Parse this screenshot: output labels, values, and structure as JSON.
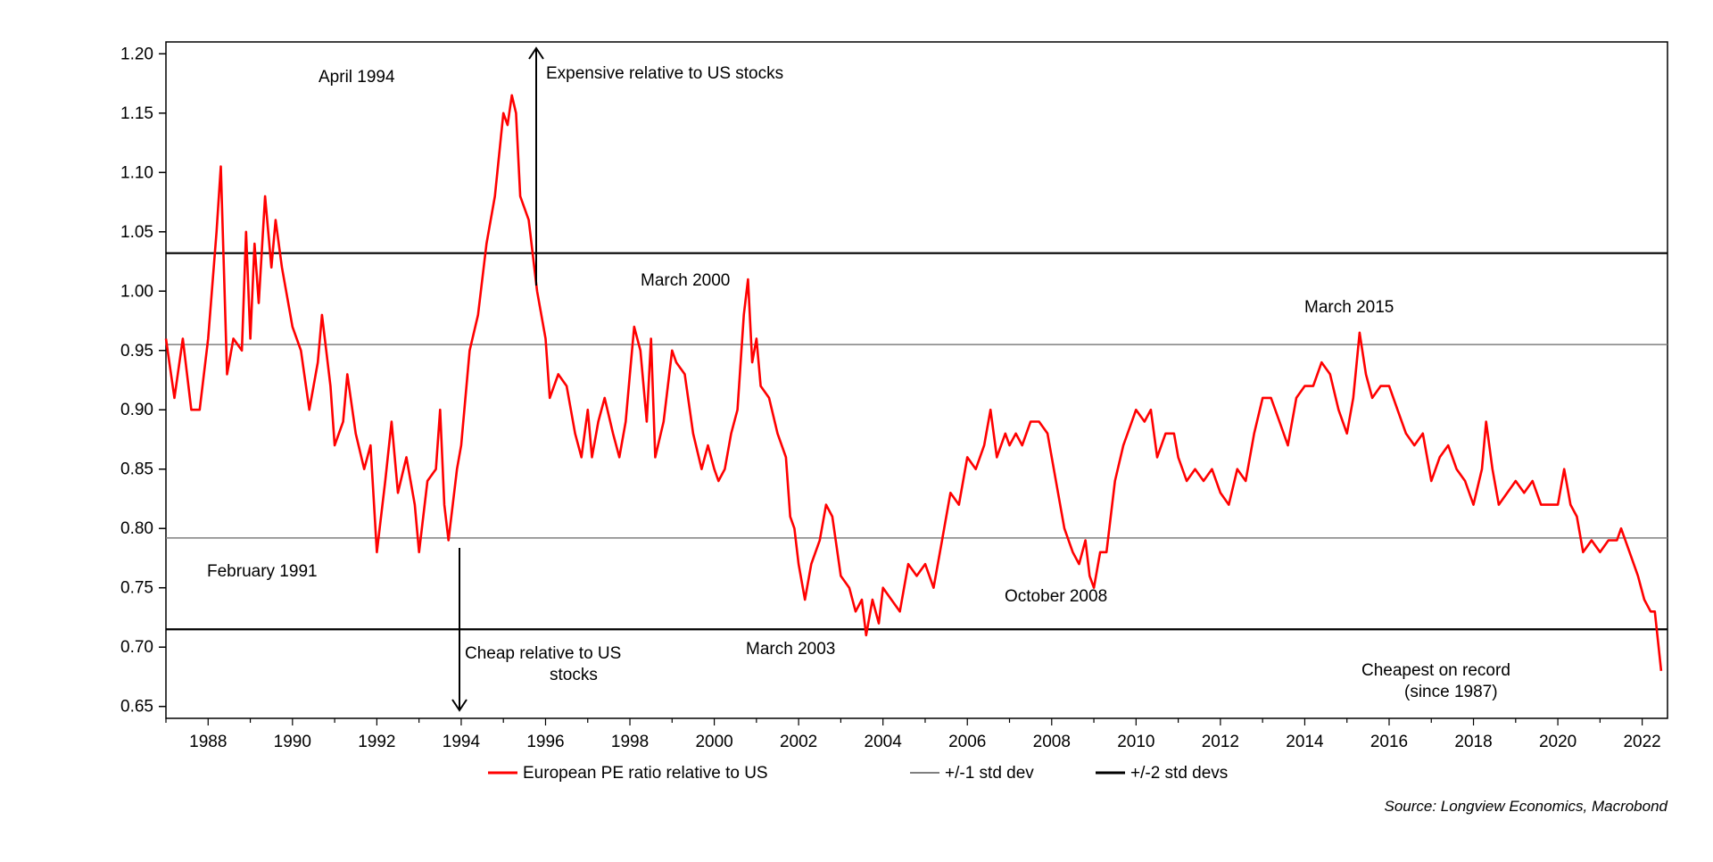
{
  "chart_data": {
    "type": "line",
    "title": "",
    "xlabel": "",
    "ylabel": "",
    "xlim": [
      1987.0,
      2022.6
    ],
    "ylim": [
      0.64,
      1.21
    ],
    "y_ticks": [
      "0.65",
      "0.70",
      "0.75",
      "0.80",
      "0.85",
      "0.90",
      "0.95",
      "1.00",
      "1.05",
      "1.10",
      "1.15",
      "1.20"
    ],
    "y_tick_values": [
      0.65,
      0.7,
      0.75,
      0.8,
      0.85,
      0.9,
      0.95,
      1.0,
      1.05,
      1.1,
      1.15,
      1.2
    ],
    "x_ticks": [
      "1988",
      "1990",
      "1992",
      "1994",
      "1996",
      "1998",
      "2000",
      "2002",
      "2004",
      "2006",
      "2008",
      "2010",
      "2012",
      "2014",
      "2016",
      "2018",
      "2020",
      "2022"
    ],
    "x_tick_values": [
      1988,
      1990,
      1992,
      1994,
      1996,
      1998,
      2000,
      2002,
      2004,
      2006,
      2008,
      2010,
      2012,
      2014,
      2016,
      2018,
      2020,
      2022
    ],
    "grid": false,
    "legend_position": "bottom",
    "reference_lines": [
      {
        "name": "+/-2 std devs",
        "value": 1.032,
        "color": "#000000",
        "weight": "thick"
      },
      {
        "name": "+/-1 std dev",
        "value": 0.955,
        "color": "#7f7f7f",
        "weight": "thin"
      },
      {
        "name": "+/-1 std dev",
        "value": 0.792,
        "color": "#7f7f7f",
        "weight": "thin"
      },
      {
        "name": "+/-2 std devs",
        "value": 0.715,
        "color": "#000000",
        "weight": "thick"
      }
    ],
    "series": [
      {
        "name": "European PE ratio relative to US",
        "color": "#ff0000",
        "points": [
          [
            1987.0,
            0.96
          ],
          [
            1987.2,
            0.91
          ],
          [
            1987.4,
            0.96
          ],
          [
            1987.6,
            0.9
          ],
          [
            1987.8,
            0.9
          ],
          [
            1988.0,
            0.96
          ],
          [
            1988.2,
            1.05
          ],
          [
            1988.3,
            1.105
          ],
          [
            1988.45,
            0.93
          ],
          [
            1988.6,
            0.96
          ],
          [
            1988.8,
            0.95
          ],
          [
            1988.9,
            1.05
          ],
          [
            1989.0,
            0.96
          ],
          [
            1989.1,
            1.04
          ],
          [
            1989.2,
            0.99
          ],
          [
            1989.35,
            1.08
          ],
          [
            1989.5,
            1.02
          ],
          [
            1989.6,
            1.06
          ],
          [
            1989.75,
            1.02
          ],
          [
            1989.9,
            0.99
          ],
          [
            1990.0,
            0.97
          ],
          [
            1990.2,
            0.95
          ],
          [
            1990.4,
            0.9
          ],
          [
            1990.6,
            0.94
          ],
          [
            1990.7,
            0.98
          ],
          [
            1990.9,
            0.92
          ],
          [
            1991.0,
            0.87
          ],
          [
            1991.2,
            0.89
          ],
          [
            1991.3,
            0.93
          ],
          [
            1991.5,
            0.88
          ],
          [
            1991.7,
            0.85
          ],
          [
            1991.85,
            0.87
          ],
          [
            1992.0,
            0.78
          ],
          [
            1992.2,
            0.84
          ],
          [
            1992.35,
            0.89
          ],
          [
            1992.5,
            0.83
          ],
          [
            1992.7,
            0.86
          ],
          [
            1992.9,
            0.82
          ],
          [
            1993.0,
            0.78
          ],
          [
            1993.2,
            0.84
          ],
          [
            1993.4,
            0.85
          ],
          [
            1993.5,
            0.9
          ],
          [
            1993.6,
            0.82
          ],
          [
            1993.7,
            0.79
          ],
          [
            1993.9,
            0.85
          ],
          [
            1994.0,
            0.87
          ],
          [
            1994.2,
            0.95
          ],
          [
            1994.4,
            0.98
          ],
          [
            1994.6,
            1.04
          ],
          [
            1994.8,
            1.08
          ],
          [
            1995.0,
            1.15
          ],
          [
            1995.1,
            1.14
          ],
          [
            1995.2,
            1.165
          ],
          [
            1995.3,
            1.15
          ],
          [
            1995.4,
            1.08
          ],
          [
            1995.6,
            1.06
          ],
          [
            1995.8,
            1.0
          ],
          [
            1996.0,
            0.96
          ],
          [
            1996.1,
            0.91
          ],
          [
            1996.3,
            0.93
          ],
          [
            1996.5,
            0.92
          ],
          [
            1996.7,
            0.88
          ],
          [
            1996.85,
            0.86
          ],
          [
            1997.0,
            0.9
          ],
          [
            1997.1,
            0.86
          ],
          [
            1997.25,
            0.89
          ],
          [
            1997.4,
            0.91
          ],
          [
            1997.6,
            0.88
          ],
          [
            1997.75,
            0.86
          ],
          [
            1997.9,
            0.89
          ],
          [
            1998.0,
            0.93
          ],
          [
            1998.1,
            0.97
          ],
          [
            1998.25,
            0.95
          ],
          [
            1998.4,
            0.89
          ],
          [
            1998.5,
            0.96
          ],
          [
            1998.6,
            0.86
          ],
          [
            1998.8,
            0.89
          ],
          [
            1999.0,
            0.95
          ],
          [
            1999.1,
            0.94
          ],
          [
            1999.3,
            0.93
          ],
          [
            1999.5,
            0.88
          ],
          [
            1999.7,
            0.85
          ],
          [
            1999.85,
            0.87
          ],
          [
            2000.0,
            0.85
          ],
          [
            2000.1,
            0.84
          ],
          [
            2000.25,
            0.85
          ],
          [
            2000.4,
            0.88
          ],
          [
            2000.55,
            0.9
          ],
          [
            2000.7,
            0.98
          ],
          [
            2000.8,
            1.01
          ],
          [
            2000.9,
            0.94
          ],
          [
            2001.0,
            0.96
          ],
          [
            2001.1,
            0.92
          ],
          [
            2001.3,
            0.91
          ],
          [
            2001.5,
            0.88
          ],
          [
            2001.7,
            0.86
          ],
          [
            2001.8,
            0.81
          ],
          [
            2001.9,
            0.8
          ],
          [
            2002.0,
            0.77
          ],
          [
            2002.15,
            0.74
          ],
          [
            2002.3,
            0.77
          ],
          [
            2002.5,
            0.79
          ],
          [
            2002.65,
            0.82
          ],
          [
            2002.8,
            0.81
          ],
          [
            2003.0,
            0.76
          ],
          [
            2003.2,
            0.75
          ],
          [
            2003.35,
            0.73
          ],
          [
            2003.5,
            0.74
          ],
          [
            2003.6,
            0.71
          ],
          [
            2003.75,
            0.74
          ],
          [
            2003.9,
            0.72
          ],
          [
            2004.0,
            0.75
          ],
          [
            2004.2,
            0.74
          ],
          [
            2004.4,
            0.73
          ],
          [
            2004.6,
            0.77
          ],
          [
            2004.8,
            0.76
          ],
          [
            2005.0,
            0.77
          ],
          [
            2005.2,
            0.75
          ],
          [
            2005.4,
            0.79
          ],
          [
            2005.6,
            0.83
          ],
          [
            2005.8,
            0.82
          ],
          [
            2006.0,
            0.86
          ],
          [
            2006.2,
            0.85
          ],
          [
            2006.4,
            0.87
          ],
          [
            2006.55,
            0.9
          ],
          [
            2006.7,
            0.86
          ],
          [
            2006.9,
            0.88
          ],
          [
            2007.0,
            0.87
          ],
          [
            2007.15,
            0.88
          ],
          [
            2007.3,
            0.87
          ],
          [
            2007.5,
            0.89
          ],
          [
            2007.7,
            0.89
          ],
          [
            2007.9,
            0.88
          ],
          [
            2008.0,
            0.86
          ],
          [
            2008.15,
            0.83
          ],
          [
            2008.3,
            0.8
          ],
          [
            2008.5,
            0.78
          ],
          [
            2008.65,
            0.77
          ],
          [
            2008.8,
            0.79
          ],
          [
            2008.9,
            0.76
          ],
          [
            2009.0,
            0.75
          ],
          [
            2009.15,
            0.78
          ],
          [
            2009.3,
            0.78
          ],
          [
            2009.5,
            0.84
          ],
          [
            2009.7,
            0.87
          ],
          [
            2009.9,
            0.89
          ],
          [
            2010.0,
            0.9
          ],
          [
            2010.2,
            0.89
          ],
          [
            2010.35,
            0.9
          ],
          [
            2010.5,
            0.86
          ],
          [
            2010.7,
            0.88
          ],
          [
            2010.9,
            0.88
          ],
          [
            2011.0,
            0.86
          ],
          [
            2011.2,
            0.84
          ],
          [
            2011.4,
            0.85
          ],
          [
            2011.6,
            0.84
          ],
          [
            2011.8,
            0.85
          ],
          [
            2012.0,
            0.83
          ],
          [
            2012.2,
            0.82
          ],
          [
            2012.4,
            0.85
          ],
          [
            2012.6,
            0.84
          ],
          [
            2012.8,
            0.88
          ],
          [
            2013.0,
            0.91
          ],
          [
            2013.2,
            0.91
          ],
          [
            2013.4,
            0.89
          ],
          [
            2013.6,
            0.87
          ],
          [
            2013.8,
            0.91
          ],
          [
            2014.0,
            0.92
          ],
          [
            2014.2,
            0.92
          ],
          [
            2014.4,
            0.94
          ],
          [
            2014.6,
            0.93
          ],
          [
            2014.8,
            0.9
          ],
          [
            2015.0,
            0.88
          ],
          [
            2015.15,
            0.91
          ],
          [
            2015.3,
            0.965
          ],
          [
            2015.45,
            0.93
          ],
          [
            2015.6,
            0.91
          ],
          [
            2015.8,
            0.92
          ],
          [
            2016.0,
            0.92
          ],
          [
            2016.2,
            0.9
          ],
          [
            2016.4,
            0.88
          ],
          [
            2016.6,
            0.87
          ],
          [
            2016.8,
            0.88
          ],
          [
            2017.0,
            0.84
          ],
          [
            2017.2,
            0.86
          ],
          [
            2017.4,
            0.87
          ],
          [
            2017.6,
            0.85
          ],
          [
            2017.8,
            0.84
          ],
          [
            2018.0,
            0.82
          ],
          [
            2018.2,
            0.85
          ],
          [
            2018.3,
            0.89
          ],
          [
            2018.45,
            0.85
          ],
          [
            2018.6,
            0.82
          ],
          [
            2018.8,
            0.83
          ],
          [
            2019.0,
            0.84
          ],
          [
            2019.2,
            0.83
          ],
          [
            2019.4,
            0.84
          ],
          [
            2019.6,
            0.82
          ],
          [
            2019.8,
            0.82
          ],
          [
            2020.0,
            0.82
          ],
          [
            2020.15,
            0.85
          ],
          [
            2020.3,
            0.82
          ],
          [
            2020.45,
            0.81
          ],
          [
            2020.6,
            0.78
          ],
          [
            2020.8,
            0.79
          ],
          [
            2021.0,
            0.78
          ],
          [
            2021.2,
            0.79
          ],
          [
            2021.4,
            0.79
          ],
          [
            2021.5,
            0.8
          ],
          [
            2021.7,
            0.78
          ],
          [
            2021.9,
            0.76
          ],
          [
            2022.05,
            0.74
          ],
          [
            2022.2,
            0.73
          ],
          [
            2022.3,
            0.73
          ],
          [
            2022.45,
            0.68
          ]
        ]
      }
    ],
    "annotations": [
      {
        "text": "April 1994"
      },
      {
        "text": "Expensive relative to US stocks"
      },
      {
        "text": "March 2000"
      },
      {
        "text": "March 2015"
      },
      {
        "text": "February 1991"
      },
      {
        "text": "October 2008"
      },
      {
        "text": "March 2003"
      },
      {
        "text": "Cheap relative to US"
      },
      {
        "text": "stocks"
      },
      {
        "text": "Cheapest on record"
      },
      {
        "text": "(since 1987)"
      }
    ],
    "legend": {
      "main_label": "European PE ratio relative to US",
      "std1_label": "+/-1 std dev",
      "std2_label": "+/-2 std devs"
    },
    "source": "Source: Longview Economics, Macrobond"
  }
}
